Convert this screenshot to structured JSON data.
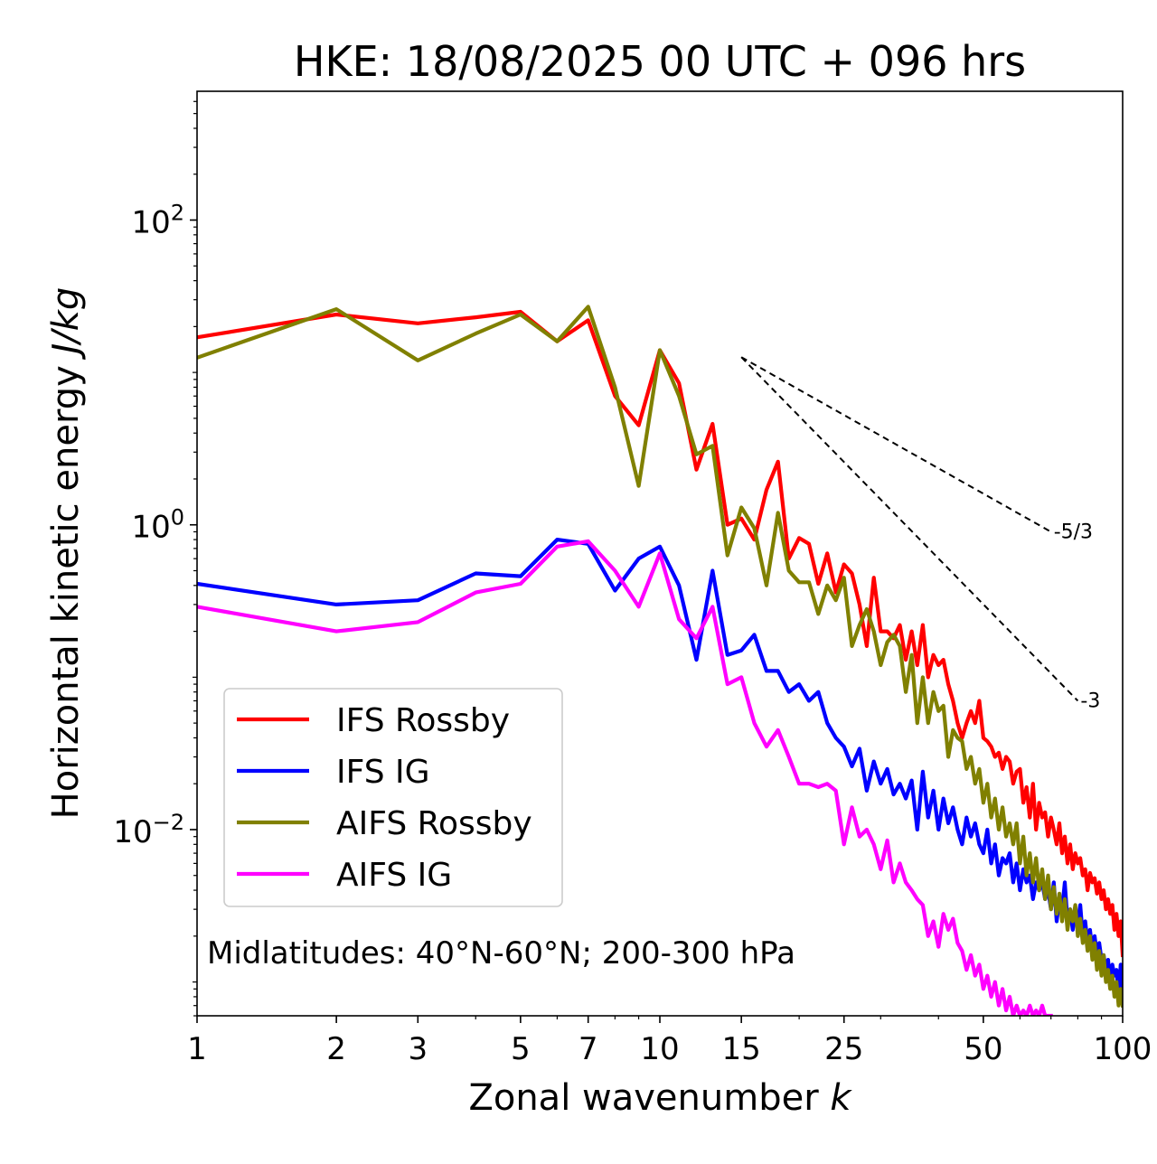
{
  "chart_data": {
    "type": "line",
    "title": "HKE: 18/08/2025 00 UTC + 096 hrs",
    "xlabel": "Zonal wavenumber",
    "xlabel_var": "k",
    "ylabel": "Horizontal kinetic energy",
    "ylabel_unit": "J/kg",
    "xscale": "log",
    "yscale": "log",
    "xlim": [
      1,
      100
    ],
    "ylim": [
      0.0006,
      700
    ],
    "xticks": [
      {
        "value": 1,
        "label": "1"
      },
      {
        "value": 2,
        "label": "2"
      },
      {
        "value": 3,
        "label": "3"
      },
      {
        "value": 5,
        "label": "5"
      },
      {
        "value": 7,
        "label": "7"
      },
      {
        "value": 10,
        "label": "10"
      },
      {
        "value": 15,
        "label": "15"
      },
      {
        "value": 25,
        "label": "25"
      },
      {
        "value": 50,
        "label": "50"
      },
      {
        "value": 100,
        "label": "100"
      }
    ],
    "yticks": [
      {
        "value": 0.01,
        "base": "10",
        "exp": "−2"
      },
      {
        "value": 1,
        "base": "10",
        "exp": "0"
      },
      {
        "value": 100,
        "base": "10",
        "exp": "2"
      }
    ],
    "annotation": "Midlatitudes: 40°N-60°N; 200-300 hPa",
    "legend_position": "lower-left",
    "reference_lines": [
      {
        "label": "-5/3",
        "x": [
          15,
          70
        ],
        "y": [
          12.6,
          0.9
        ]
      },
      {
        "label": "-3",
        "x": [
          15,
          80
        ],
        "y": [
          12.6,
          0.07
        ]
      }
    ],
    "series": [
      {
        "name": "IFS Rossby",
        "color": "#ff0000",
        "x": [
          1,
          2,
          3,
          4,
          5,
          6,
          7,
          8,
          9,
          10,
          11,
          12,
          13,
          14,
          15,
          16,
          17,
          18,
          19,
          20,
          21,
          22,
          23,
          24,
          25,
          26,
          27,
          28,
          29,
          30,
          31,
          32,
          33,
          34,
          35,
          36,
          37,
          38,
          39,
          40,
          41,
          42,
          43,
          44,
          45,
          46,
          47,
          48,
          49,
          50,
          51,
          52,
          53,
          54,
          55,
          56,
          57,
          58,
          59,
          60,
          61,
          62,
          63,
          64,
          65,
          66,
          67,
          68,
          69,
          70,
          71,
          72,
          73,
          74,
          75,
          76,
          77,
          78,
          79,
          80,
          81,
          82,
          83,
          84,
          85,
          86,
          87,
          88,
          89,
          90,
          91,
          92,
          93,
          94,
          95,
          96,
          97,
          98,
          99,
          100
        ],
        "y": [
          17,
          24,
          21,
          23,
          25,
          16,
          22,
          7,
          4.5,
          14,
          8.5,
          2.3,
          4.6,
          1.0,
          1.1,
          0.8,
          1.7,
          2.6,
          0.6,
          0.82,
          0.75,
          0.41,
          0.65,
          0.36,
          0.55,
          0.48,
          0.3,
          0.16,
          0.45,
          0.2,
          0.2,
          0.18,
          0.22,
          0.13,
          0.2,
          0.12,
          0.22,
          0.1,
          0.14,
          0.12,
          0.13,
          0.09,
          0.07,
          0.05,
          0.04,
          0.05,
          0.06,
          0.05,
          0.07,
          0.04,
          0.038,
          0.035,
          0.03,
          0.032,
          0.025,
          0.03,
          0.028,
          0.02,
          0.024,
          0.025,
          0.015,
          0.019,
          0.012,
          0.02,
          0.01,
          0.015,
          0.012,
          0.013,
          0.009,
          0.012,
          0.01,
          0.008,
          0.011,
          0.007,
          0.009,
          0.006,
          0.008,
          0.0055,
          0.007,
          0.006,
          0.0065,
          0.005,
          0.0055,
          0.004,
          0.0052,
          0.0045,
          0.0048,
          0.0038,
          0.0045,
          0.0035,
          0.004,
          0.003,
          0.0035,
          0.0028,
          0.0032,
          0.0022,
          0.0028,
          0.002,
          0.0025,
          0.0015
        ]
      },
      {
        "name": "IFS IG",
        "color": "#0000ff",
        "x": [
          1,
          2,
          3,
          4,
          5,
          6,
          7,
          8,
          9,
          10,
          11,
          12,
          13,
          14,
          15,
          16,
          17,
          18,
          19,
          20,
          21,
          22,
          23,
          24,
          25,
          26,
          27,
          28,
          29,
          30,
          31,
          32,
          33,
          34,
          35,
          36,
          37,
          38,
          39,
          40,
          41,
          42,
          43,
          44,
          45,
          46,
          47,
          48,
          49,
          50,
          51,
          52,
          53,
          54,
          55,
          56,
          57,
          58,
          59,
          60,
          61,
          62,
          63,
          64,
          65,
          66,
          67,
          68,
          69,
          70,
          71,
          72,
          73,
          74,
          75,
          76,
          77,
          78,
          79,
          80,
          81,
          82,
          83,
          84,
          85,
          86,
          87,
          88,
          89,
          90,
          91,
          92,
          93,
          94,
          95,
          96,
          97,
          98,
          99,
          100
        ],
        "y": [
          0.41,
          0.3,
          0.32,
          0.48,
          0.46,
          0.8,
          0.75,
          0.37,
          0.6,
          0.72,
          0.4,
          0.13,
          0.5,
          0.14,
          0.15,
          0.19,
          0.11,
          0.11,
          0.08,
          0.09,
          0.07,
          0.08,
          0.05,
          0.04,
          0.035,
          0.026,
          0.034,
          0.018,
          0.028,
          0.02,
          0.025,
          0.017,
          0.02,
          0.016,
          0.021,
          0.01,
          0.024,
          0.012,
          0.018,
          0.01,
          0.016,
          0.011,
          0.014,
          0.01,
          0.008,
          0.012,
          0.009,
          0.011,
          0.008,
          0.007,
          0.01,
          0.006,
          0.008,
          0.005,
          0.0065,
          0.006,
          0.007,
          0.0045,
          0.006,
          0.004,
          0.0055,
          0.0045,
          0.005,
          0.0035,
          0.0045,
          0.004,
          0.0045,
          0.0035,
          0.004,
          0.003,
          0.0045,
          0.0025,
          0.0035,
          0.003,
          0.0045,
          0.0025,
          0.003,
          0.0022,
          0.003,
          0.0025,
          0.0032,
          0.002,
          0.0025,
          0.0018,
          0.0022,
          0.0016,
          0.002,
          0.0015,
          0.0018,
          0.0014,
          0.0015,
          0.0012,
          0.0014,
          0.001,
          0.0013,
          0.0011,
          0.0012,
          0.0008,
          0.0013,
          0.0009
        ]
      },
      {
        "name": "AIFS Rossby",
        "color": "#808000",
        "x": [
          1,
          2,
          3,
          4,
          5,
          6,
          7,
          8,
          9,
          10,
          11,
          12,
          13,
          14,
          15,
          16,
          17,
          18,
          19,
          20,
          21,
          22,
          23,
          24,
          25,
          26,
          27,
          28,
          29,
          30,
          31,
          32,
          33,
          34,
          35,
          36,
          37,
          38,
          39,
          40,
          41,
          42,
          43,
          44,
          45,
          46,
          47,
          48,
          49,
          50,
          51,
          52,
          53,
          54,
          55,
          56,
          57,
          58,
          59,
          60,
          61,
          62,
          63,
          64,
          65,
          66,
          67,
          68,
          69,
          70,
          71,
          72,
          73,
          74,
          75,
          76,
          77,
          78,
          79,
          80,
          81,
          82,
          83,
          84,
          85,
          86,
          87,
          88,
          89,
          90,
          91,
          92,
          93,
          94,
          95,
          96,
          97,
          98,
          99,
          100
        ],
        "y": [
          12.5,
          26,
          12,
          18,
          24,
          16,
          27,
          8,
          1.8,
          14,
          7,
          2.9,
          3.3,
          0.63,
          1.3,
          0.95,
          0.4,
          1.2,
          0.5,
          0.42,
          0.42,
          0.26,
          0.4,
          0.32,
          0.45,
          0.16,
          0.22,
          0.28,
          0.2,
          0.12,
          0.17,
          0.19,
          0.16,
          0.08,
          0.14,
          0.05,
          0.1,
          0.05,
          0.08,
          0.06,
          0.065,
          0.03,
          0.045,
          0.04,
          0.038,
          0.025,
          0.03,
          0.02,
          0.025,
          0.015,
          0.02,
          0.012,
          0.016,
          0.01,
          0.014,
          0.009,
          0.011,
          0.008,
          0.011,
          0.006,
          0.009,
          0.005,
          0.007,
          0.0045,
          0.0065,
          0.004,
          0.0055,
          0.0035,
          0.005,
          0.003,
          0.0042,
          0.0028,
          0.0038,
          0.0025,
          0.0035,
          0.0022,
          0.003,
          0.0025,
          0.0032,
          0.002,
          0.0026,
          0.0018,
          0.0022,
          0.0016,
          0.002,
          0.0014,
          0.0018,
          0.0012,
          0.0016,
          0.0011,
          0.0015,
          0.001,
          0.0012,
          0.0009,
          0.0011,
          0.0008,
          0.001,
          0.0007,
          0.0009,
          0.0007
        ]
      },
      {
        "name": "AIFS IG",
        "color": "#ff00ff",
        "x": [
          1,
          2,
          3,
          4,
          5,
          6,
          7,
          8,
          9,
          10,
          11,
          12,
          13,
          14,
          15,
          16,
          17,
          18,
          19,
          20,
          21,
          22,
          23,
          24,
          25,
          26,
          27,
          28,
          29,
          30,
          31,
          32,
          33,
          34,
          35,
          36,
          37,
          38,
          39,
          40,
          41,
          42,
          43,
          44,
          45,
          46,
          47,
          48,
          49,
          50,
          51,
          52,
          53,
          54,
          55,
          56,
          57,
          58,
          59,
          60,
          61,
          62,
          63,
          64,
          65,
          66,
          67,
          68,
          69,
          70
        ],
        "y": [
          0.29,
          0.2,
          0.23,
          0.36,
          0.41,
          0.72,
          0.78,
          0.5,
          0.29,
          0.65,
          0.24,
          0.18,
          0.29,
          0.09,
          0.1,
          0.05,
          0.035,
          0.045,
          0.03,
          0.02,
          0.02,
          0.019,
          0.02,
          0.018,
          0.008,
          0.014,
          0.009,
          0.01,
          0.008,
          0.0055,
          0.0085,
          0.0045,
          0.006,
          0.0045,
          0.004,
          0.0035,
          0.0032,
          0.002,
          0.0025,
          0.0017,
          0.0028,
          0.0022,
          0.0026,
          0.0018,
          0.0016,
          0.0012,
          0.0015,
          0.0011,
          0.0013,
          0.0009,
          0.0011,
          0.0008,
          0.001,
          0.0007,
          0.0009,
          0.00065,
          0.0008,
          0.0006,
          0.0007,
          0.0006,
          0.00065,
          0.0006,
          0.0007,
          0.0006,
          0.00065,
          0.0006,
          0.0007,
          0.0006,
          0.0006,
          0.0006
        ]
      }
    ]
  }
}
